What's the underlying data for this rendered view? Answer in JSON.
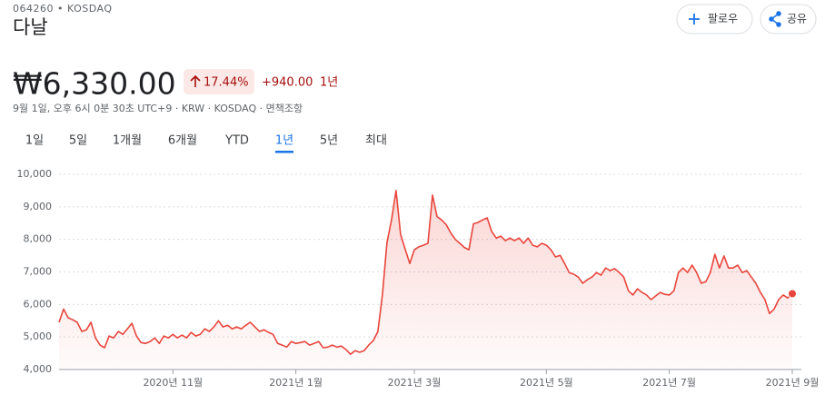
{
  "header": {
    "ticker": "064260 • KOSDAQ",
    "name": "다날",
    "follow": "팔로우",
    "share": "공유"
  },
  "quote": {
    "price": "₩6,330.00",
    "change_pct": "17.44%",
    "change": "+940.00",
    "period": "1년",
    "info": "9월 1일, 오후 6시 0분 30초 UTC+9 · KRW · KOSDAQ · 면책조항"
  },
  "tabs": [
    "1일",
    "5일",
    "1개월",
    "6개월",
    "YTD",
    "1년",
    "5년",
    "최대"
  ],
  "selected_tab": 5,
  "chart_data": {
    "type": "line",
    "color": "#e8453c",
    "grid": true,
    "ylim": [
      4000,
      10000
    ],
    "yticks": [
      {
        "value": 4000,
        "label": "4,000"
      },
      {
        "value": 5000,
        "label": "5,000"
      },
      {
        "value": 6000,
        "label": "6,000"
      },
      {
        "value": 7000,
        "label": "7,000"
      },
      {
        "value": 8000,
        "label": "8,000"
      },
      {
        "value": 9000,
        "label": "9,000"
      },
      {
        "value": 10000,
        "label": "10,000"
      }
    ],
    "xlim": [
      0,
      161
    ],
    "xticks": [
      {
        "value": 25,
        "label": "2020년 11월"
      },
      {
        "value": 52,
        "label": "2021년 1월"
      },
      {
        "value": 78,
        "label": "2021년 3월"
      },
      {
        "value": 107,
        "label": "2021년 5월"
      },
      {
        "value": 134,
        "label": "2021년 7월"
      },
      {
        "value": 161,
        "label": "2021년 9월"
      }
    ],
    "values": [
      5450,
      5860,
      5590,
      5530,
      5450,
      5170,
      5220,
      5450,
      4970,
      4750,
      4670,
      5030,
      4970,
      5170,
      5080,
      5250,
      5420,
      5030,
      4830,
      4800,
      4860,
      4970,
      4800,
      5030,
      4970,
      5080,
      4970,
      5060,
      4970,
      5140,
      5030,
      5080,
      5250,
      5170,
      5310,
      5500,
      5310,
      5360,
      5250,
      5310,
      5250,
      5360,
      5450,
      5310,
      5170,
      5220,
      5140,
      5080,
      4800,
      4750,
      4690,
      4860,
      4800,
      4830,
      4860,
      4750,
      4800,
      4860,
      4670,
      4690,
      4750,
      4690,
      4720,
      4610,
      4470,
      4580,
      4530,
      4580,
      4750,
      4890,
      5170,
      6300,
      7900,
      8600,
      9500,
      8150,
      7700,
      7260,
      7680,
      7770,
      7820,
      7880,
      9360,
      8700,
      8600,
      8450,
      8200,
      8000,
      7880,
      7750,
      7680,
      8480,
      8520,
      8600,
      8660,
      8240,
      8040,
      8100,
      7960,
      8040,
      7960,
      8040,
      7880,
      8040,
      7820,
      7770,
      7880,
      7820,
      7680,
      7460,
      7510,
      7260,
      6980,
      6930,
      6840,
      6650,
      6760,
      6840,
      6980,
      6900,
      7120,
      7040,
      7100,
      6980,
      6840,
      6420,
      6290,
      6480,
      6370,
      6290,
      6150,
      6260,
      6370,
      6310,
      6290,
      6420,
      6980,
      7120,
      6980,
      7210,
      6980,
      6650,
      6700,
      6980,
      7540,
      7120,
      7490,
      7120,
      7120,
      7210,
      6980,
      7040,
      6840,
      6650,
      6370,
      6150,
      5720,
      5860,
      6150,
      6290,
      6200,
      6330
    ]
  }
}
